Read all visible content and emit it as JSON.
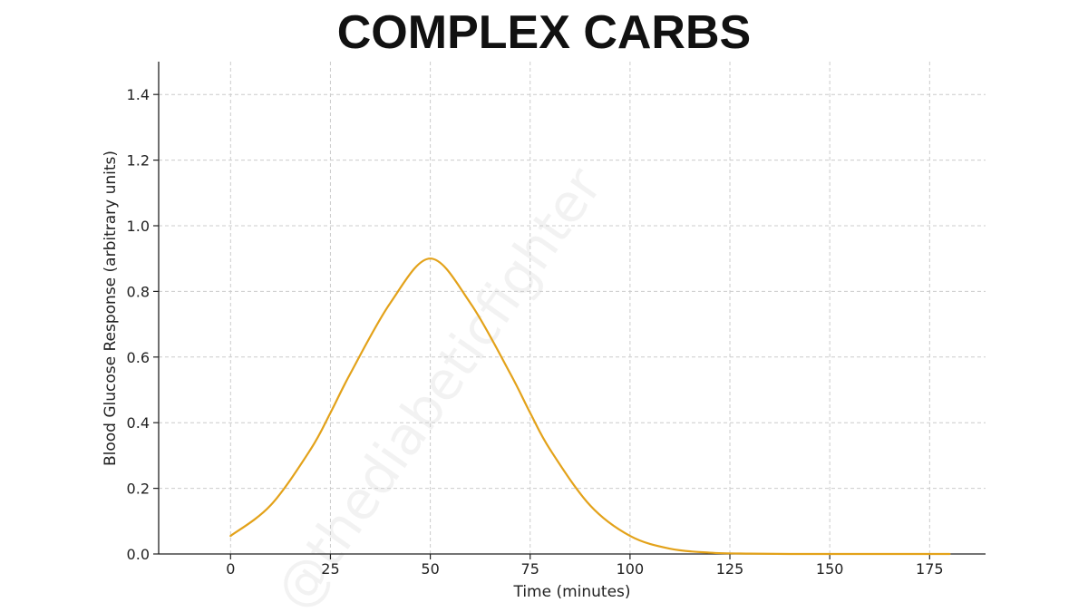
{
  "title": "COMPLEX CARBS",
  "watermark": "@thediabeticfighter",
  "colors": {
    "line": "#e3a21a",
    "grid": "#cccccc",
    "axis": "#222222",
    "text": "#222222"
  },
  "chart_data": {
    "type": "line",
    "title": "COMPLEX CARBS",
    "xlabel": "Time (minutes)",
    "ylabel": "Blood Glucose Response (arbitrary units)",
    "xlim": [
      -18,
      189
    ],
    "ylim": [
      0,
      1.5
    ],
    "xticks": [
      0,
      25,
      50,
      75,
      100,
      125,
      150,
      175
    ],
    "yticks": [
      0.0,
      0.2,
      0.4,
      0.6,
      0.8,
      1.0,
      1.2,
      1.4
    ],
    "ytick_labels": [
      "0.0",
      "0.2",
      "0.4",
      "0.6",
      "0.8",
      "1.0",
      "1.2",
      "1.4"
    ],
    "grid": true,
    "legend": "none",
    "series": [
      {
        "color": "#e3a21a",
        "x": [
          0,
          10,
          20,
          25,
          30,
          40,
          50,
          60,
          70,
          75,
          80,
          90,
          100,
          110,
          120,
          130,
          140,
          150,
          160,
          170,
          180
        ],
        "y": [
          0.055,
          0.148,
          0.318,
          0.43,
          0.55,
          0.765,
          0.9,
          0.765,
          0.55,
          0.43,
          0.318,
          0.148,
          0.055,
          0.016,
          0.004,
          0.001,
          0.0,
          0.0,
          0.0,
          0.0,
          0.0
        ]
      }
    ]
  }
}
